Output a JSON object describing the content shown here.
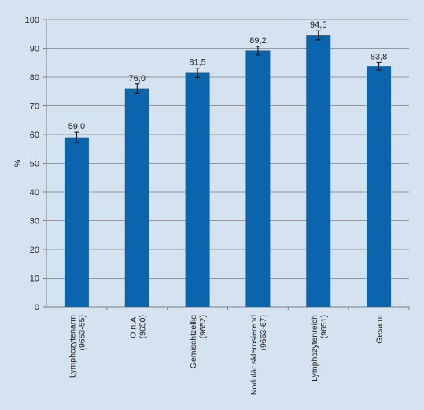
{
  "chart_data": {
    "type": "bar",
    "title": "",
    "xlabel": "",
    "ylabel": "%",
    "ylim": [
      0,
      100
    ],
    "yticks": [
      0,
      10,
      20,
      30,
      40,
      50,
      60,
      70,
      80,
      90,
      100
    ],
    "grid": true,
    "bar_color": "#0b65ad",
    "categories": [
      [
        "Lymphozytenarm",
        "(9653-55)"
      ],
      [
        "O.n.A.",
        "(9650)"
      ],
      [
        "Gemischtzellig",
        "(9652)"
      ],
      [
        "Nodulär sklerosierend",
        "(9663-67)"
      ],
      [
        "Lymphozytenreich",
        "(9651)"
      ],
      [
        "Gesamt"
      ]
    ],
    "values": [
      59.0,
      76.0,
      81.5,
      89.2,
      94.5,
      83.8
    ],
    "labels": [
      "59,0",
      "76,0",
      "81,5",
      "89,2",
      "94,5",
      "83,8"
    ],
    "errors": [
      1.8,
      1.6,
      1.6,
      1.5,
      1.6,
      1.3
    ]
  }
}
